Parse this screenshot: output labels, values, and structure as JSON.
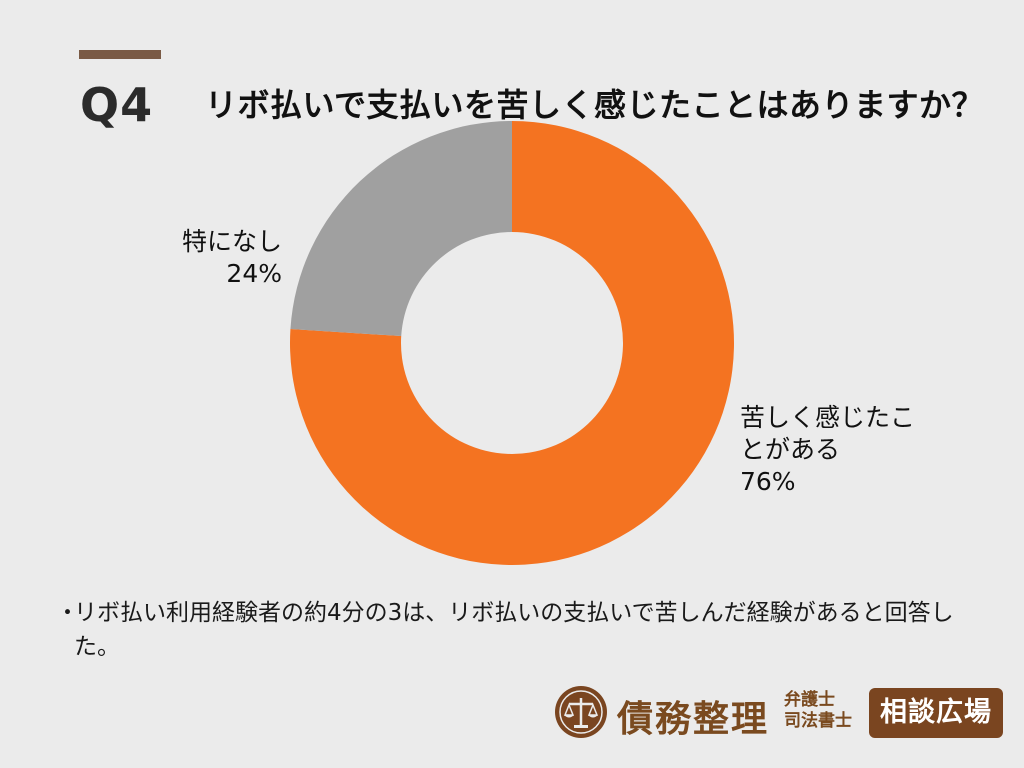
{
  "header": {
    "q_label": "Q4",
    "question": "リボ払いで支払いを苦しく感じたことはありますか？"
  },
  "chart_data": {
    "type": "pie",
    "variant": "donut",
    "title": "リボ払いで支払いを苦しく感じたことはありますか？",
    "categories": [
      "苦しく感じたことがある",
      "特になし"
    ],
    "values": [
      76,
      24
    ],
    "value_labels": [
      "76%",
      "24%"
    ],
    "label_lines": [
      [
        "苦しく感じたこ",
        "とがある"
      ],
      [
        "特になし"
      ]
    ],
    "colors": [
      "#f47321",
      "#a0a0a0"
    ],
    "start_angle_deg": 0,
    "direction": "clockwise",
    "legend": "none"
  },
  "note": {
    "bullet": "・",
    "text": "リボ払い利用経験者の約4分の3は、リボ払いの支払いで苦しんだ経験があると回答した。"
  },
  "logo": {
    "main": "債務整理",
    "sub_line1": "弁護士",
    "sub_line2": "司法書士",
    "box": "相談広場",
    "emblem": "scales-of-justice-icon",
    "brand_color": "#7a4520"
  }
}
